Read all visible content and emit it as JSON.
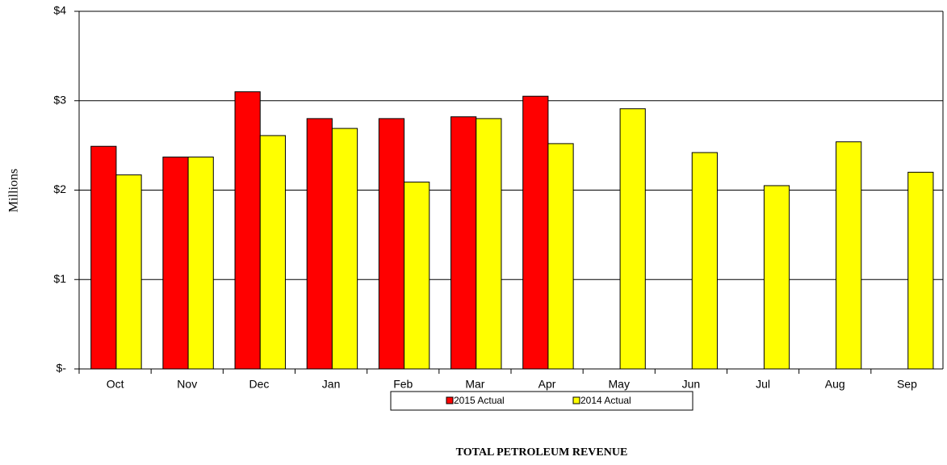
{
  "chart_data": {
    "type": "bar",
    "title": "TOTAL PETROLEUM REVENUE",
    "y_label": "Millions",
    "categories": [
      "Oct",
      "Nov",
      "Dec",
      "Jan",
      "Feb",
      "Mar",
      "Apr",
      "May",
      "Jun",
      "Jul",
      "Aug",
      "Sep"
    ],
    "series": [
      {
        "name": "2015 Actual",
        "color": "#ff0000",
        "values": [
          2.49,
          2.37,
          3.1,
          2.8,
          2.8,
          2.82,
          3.05,
          null,
          null,
          null,
          null,
          null
        ]
      },
      {
        "name": "2014 Actual",
        "color": "#ffff00",
        "values": [
          2.17,
          2.37,
          2.61,
          2.69,
          2.09,
          2.8,
          2.52,
          2.91,
          2.42,
          2.05,
          2.54,
          2.2
        ]
      }
    ],
    "ylim": [
      0,
      4
    ],
    "yticks": [
      {
        "value": 0,
        "label": "$-"
      },
      {
        "value": 1,
        "label": "$1"
      },
      {
        "value": 2,
        "label": "$2"
      },
      {
        "value": 3,
        "label": "$3"
      },
      {
        "value": 4,
        "label": "$4"
      }
    ],
    "grid": true,
    "legend": "bottom"
  }
}
